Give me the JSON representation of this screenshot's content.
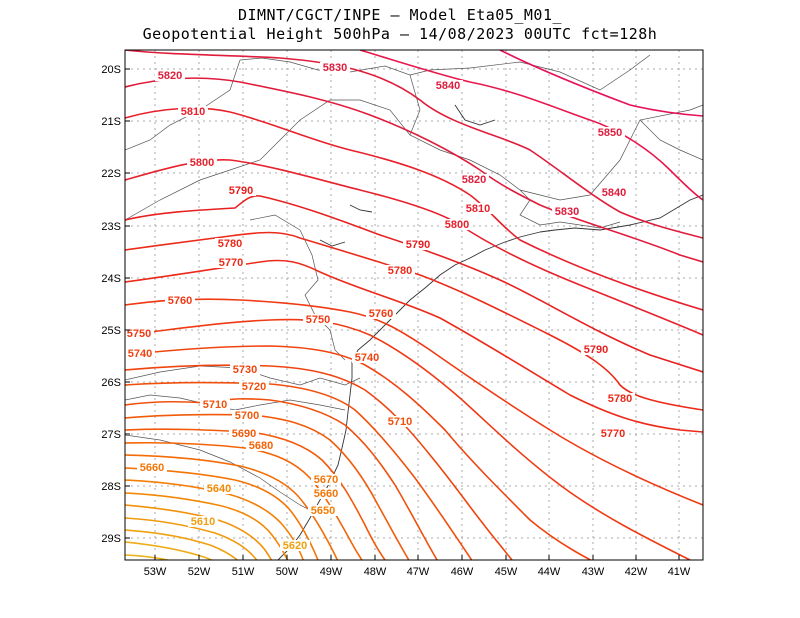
{
  "title_line1": "DIMNT/CGCT/INPE —  Model Eta05_M01_",
  "title_line2": "Geopotential Height 500hPa —  14/08/2023 00UTC fct=128h",
  "lat_ticks": [
    "20S",
    "21S",
    "22S",
    "23S",
    "24S",
    "25S",
    "26S",
    "27S",
    "28S",
    "29S"
  ],
  "lon_ticks": [
    "53W",
    "52W",
    "51W",
    "50W",
    "49W",
    "48W",
    "47W",
    "46W",
    "45W",
    "44W",
    "43W",
    "42W",
    "41W"
  ],
  "grid": true,
  "contour_labels": [
    {
      "text": "5820",
      "color": "#e01c3c"
    },
    {
      "text": "5830",
      "color": "#e01c3c"
    },
    {
      "text": "5840",
      "color": "#e01c3c"
    },
    {
      "text": "5850",
      "color": "#e01c3c"
    },
    {
      "text": "5840",
      "color": "#e01c3c"
    },
    {
      "text": "5810",
      "color": "#e8202c"
    },
    {
      "text": "5800",
      "color": "#e8202c"
    },
    {
      "text": "5790",
      "color": "#e82020"
    },
    {
      "text": "5820",
      "color": "#e01c3c"
    },
    {
      "text": "5810",
      "color": "#e8202c"
    },
    {
      "text": "5830",
      "color": "#e01c3c"
    },
    {
      "text": "5800",
      "color": "#e8202c"
    },
    {
      "text": "5780",
      "color": "#ec2a1a"
    },
    {
      "text": "5790",
      "color": "#e82020"
    },
    {
      "text": "5770",
      "color": "#ec2a1a"
    },
    {
      "text": "5780",
      "color": "#ec2a1a"
    },
    {
      "text": "5760",
      "color": "#f03a14"
    },
    {
      "text": "5750",
      "color": "#f03a14"
    },
    {
      "text": "5760",
      "color": "#f03a14"
    },
    {
      "text": "5750",
      "color": "#f03a14"
    },
    {
      "text": "5740",
      "color": "#f04410"
    },
    {
      "text": "5740",
      "color": "#f04410"
    },
    {
      "text": "5790",
      "color": "#e82020"
    },
    {
      "text": "5730",
      "color": "#f04410"
    },
    {
      "text": "5720",
      "color": "#f0500c"
    },
    {
      "text": "5780",
      "color": "#ec2a1a"
    },
    {
      "text": "5710",
      "color": "#f0500c"
    },
    {
      "text": "5700",
      "color": "#f25a0a"
    },
    {
      "text": "5710",
      "color": "#f0500c"
    },
    {
      "text": "5690",
      "color": "#f25a0a"
    },
    {
      "text": "5770",
      "color": "#ec2a1a"
    },
    {
      "text": "5680",
      "color": "#f46406"
    },
    {
      "text": "5660",
      "color": "#f47406"
    },
    {
      "text": "5670",
      "color": "#f47406"
    },
    {
      "text": "5640",
      "color": "#f28806"
    },
    {
      "text": "5660",
      "color": "#f47406"
    },
    {
      "text": "5650",
      "color": "#f47e06"
    },
    {
      "text": "5610",
      "color": "#f0a010"
    },
    {
      "text": "5620",
      "color": "#f0a010"
    }
  ]
}
